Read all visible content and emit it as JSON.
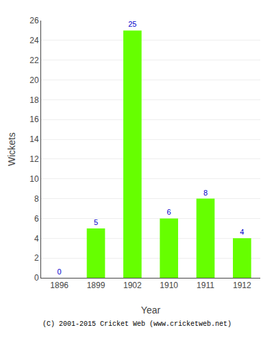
{
  "chart_data": {
    "type": "bar",
    "categories": [
      "1896",
      "1899",
      "1902",
      "1910",
      "1911",
      "1912"
    ],
    "values": [
      0,
      5,
      25,
      6,
      8,
      4
    ],
    "color": "#66ff00",
    "xlabel": "Year",
    "ylabel": "Wickets",
    "ylim": [
      0,
      26
    ],
    "yticks": [
      0,
      2,
      4,
      6,
      8,
      10,
      12,
      14,
      16,
      18,
      20,
      22,
      24,
      26
    ],
    "grid": true,
    "data_labels": true,
    "annotations": [
      "(C) 2001-2015 Cricket Web (www.cricketweb.net)"
    ]
  }
}
